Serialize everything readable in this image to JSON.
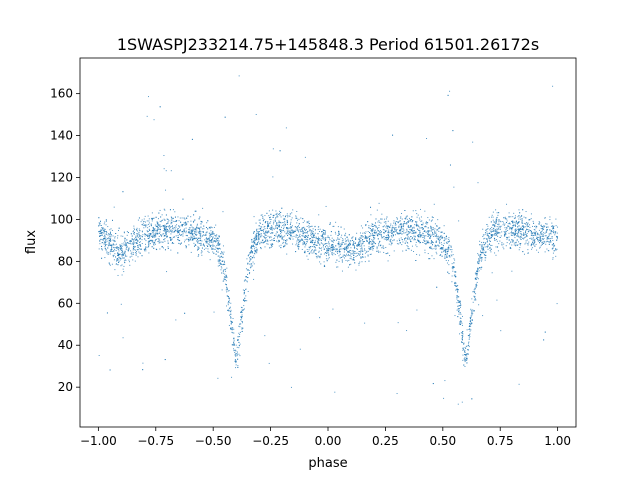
{
  "chart_data": {
    "type": "scatter",
    "title": "1SWASPJ233214.75+145848.3 Period 61501.26172s",
    "xlabel": "phase",
    "ylabel": "flux",
    "xlim": [
      -1.08,
      1.08
    ],
    "ylim": [
      1,
      177
    ],
    "xticks": [
      -1.0,
      -0.75,
      -0.5,
      -0.25,
      0.0,
      0.25,
      0.5,
      0.75,
      1.0
    ],
    "xtick_labels": [
      "−1.00",
      "−0.75",
      "−0.50",
      "−0.25",
      "0.00",
      "0.25",
      "0.50",
      "0.75",
      "1.00"
    ],
    "yticks": [
      20,
      40,
      60,
      80,
      100,
      120,
      140,
      160
    ],
    "ytick_labels": [
      "20",
      "40",
      "60",
      "80",
      "100",
      "120",
      "140",
      "160"
    ],
    "grid": false,
    "marker_color": "#1f77b4",
    "series": [
      {
        "description_of_shape": "phase-folded eclipsing binary light curve",
        "x": [
          -1.0,
          -0.95,
          -0.9,
          -0.85,
          -0.8,
          -0.75,
          -0.7,
          -0.65,
          -0.6,
          -0.55,
          -0.5,
          -0.47,
          -0.45,
          -0.43,
          -0.41,
          -0.4,
          -0.39,
          -0.37,
          -0.35,
          -0.33,
          -0.3,
          -0.25,
          -0.2,
          -0.15,
          -0.1,
          -0.05,
          0.0,
          0.05,
          0.1,
          0.15,
          0.2,
          0.25,
          0.3,
          0.35,
          0.4,
          0.45,
          0.5,
          0.53,
          0.55,
          0.57,
          0.59,
          0.6,
          0.61,
          0.63,
          0.65,
          0.67,
          0.7,
          0.75,
          0.8,
          0.85,
          0.9,
          0.95,
          1.0
        ],
        "y": [
          94,
          88,
          84,
          88,
          92,
          94,
          95,
          95,
          94,
          92,
          89,
          84,
          75,
          58,
          40,
          32,
          40,
          58,
          75,
          86,
          92,
          95,
          95,
          94,
          92,
          89,
          88,
          88,
          84,
          88,
          92,
          94,
          95,
          95,
          94,
          92,
          89,
          84,
          75,
          58,
          40,
          32,
          40,
          58,
          75,
          86,
          92,
          95,
          95,
          94,
          93,
          92,
          91
        ]
      }
    ]
  }
}
